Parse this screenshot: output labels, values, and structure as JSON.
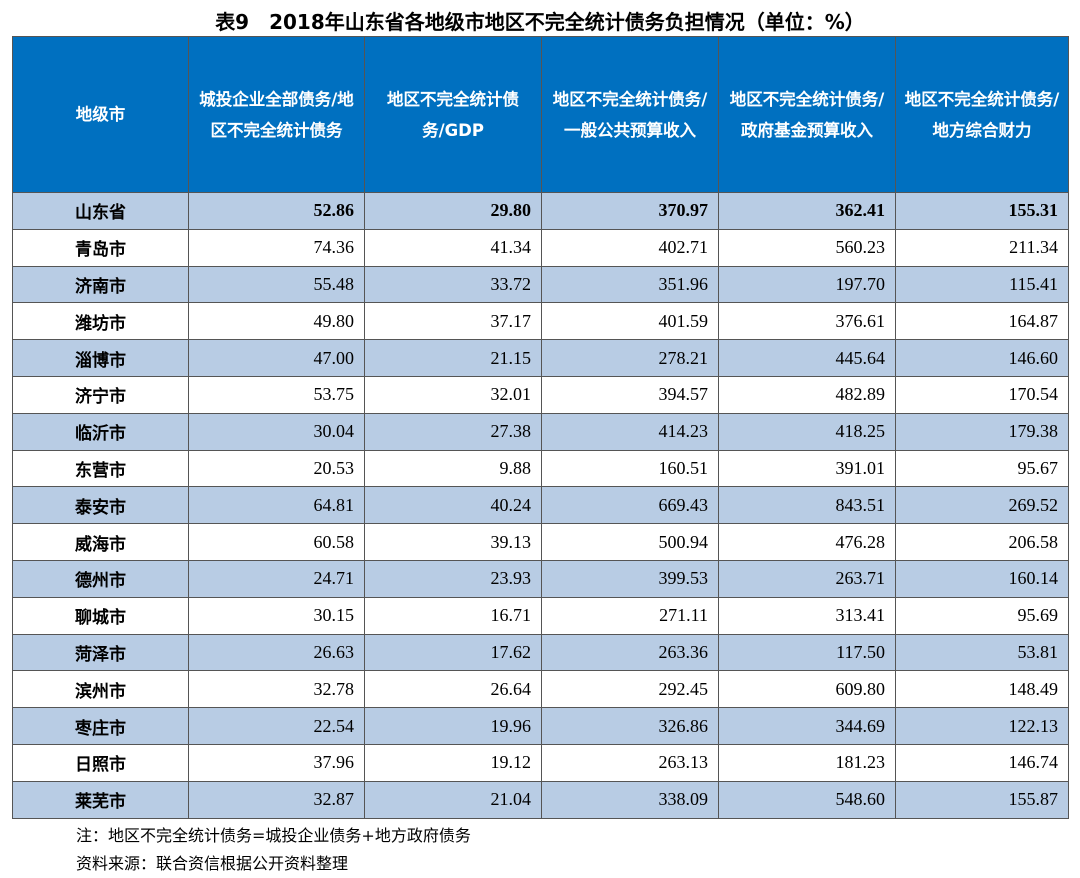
{
  "title": "表9　2018年山东省各地级市地区不完全统计债务负担情况（单位：%）",
  "colors": {
    "header_bg": "#0070c0",
    "stripe_bg": "#b8cce4"
  },
  "headers": [
    "地级市",
    "城投企业全部债务/地区不完全统计债务",
    "地区不完全统计债务/GDP",
    "地区不完全统计债务/一般公共预算收入",
    "地区不完全统计债务/政府基金预算收入",
    "地区不完全统计债务/地方综合财力"
  ],
  "rows": [
    [
      "山东省",
      "52.86",
      "29.80",
      "370.97",
      "362.41",
      "155.31"
    ],
    [
      "青岛市",
      "74.36",
      "41.34",
      "402.71",
      "560.23",
      "211.34"
    ],
    [
      "济南市",
      "55.48",
      "33.72",
      "351.96",
      "197.70",
      "115.41"
    ],
    [
      "潍坊市",
      "49.80",
      "37.17",
      "401.59",
      "376.61",
      "164.87"
    ],
    [
      "淄博市",
      "47.00",
      "21.15",
      "278.21",
      "445.64",
      "146.60"
    ],
    [
      "济宁市",
      "53.75",
      "32.01",
      "394.57",
      "482.89",
      "170.54"
    ],
    [
      "临沂市",
      "30.04",
      "27.38",
      "414.23",
      "418.25",
      "179.38"
    ],
    [
      "东营市",
      "20.53",
      "9.88",
      "160.51",
      "391.01",
      "95.67"
    ],
    [
      "泰安市",
      "64.81",
      "40.24",
      "669.43",
      "843.51",
      "269.52"
    ],
    [
      "威海市",
      "60.58",
      "39.13",
      "500.94",
      "476.28",
      "206.58"
    ],
    [
      "德州市",
      "24.71",
      "23.93",
      "399.53",
      "263.71",
      "160.14"
    ],
    [
      "聊城市",
      "30.15",
      "16.71",
      "271.11",
      "313.41",
      "95.69"
    ],
    [
      "菏泽市",
      "26.63",
      "17.62",
      "263.36",
      "117.50",
      "53.81"
    ],
    [
      "滨州市",
      "32.78",
      "26.64",
      "292.45",
      "609.80",
      "148.49"
    ],
    [
      "枣庄市",
      "22.54",
      "19.96",
      "326.86",
      "344.69",
      "122.13"
    ],
    [
      "日照市",
      "37.96",
      "19.12",
      "263.13",
      "181.23",
      "146.74"
    ],
    [
      "莱芜市",
      "32.87",
      "21.04",
      "338.09",
      "548.60",
      "155.87"
    ]
  ],
  "notes": {
    "note": "注：地区不完全统计债务=城投企业债务+地方政府债务",
    "source": "资料来源：联合资信根据公开资料整理"
  }
}
